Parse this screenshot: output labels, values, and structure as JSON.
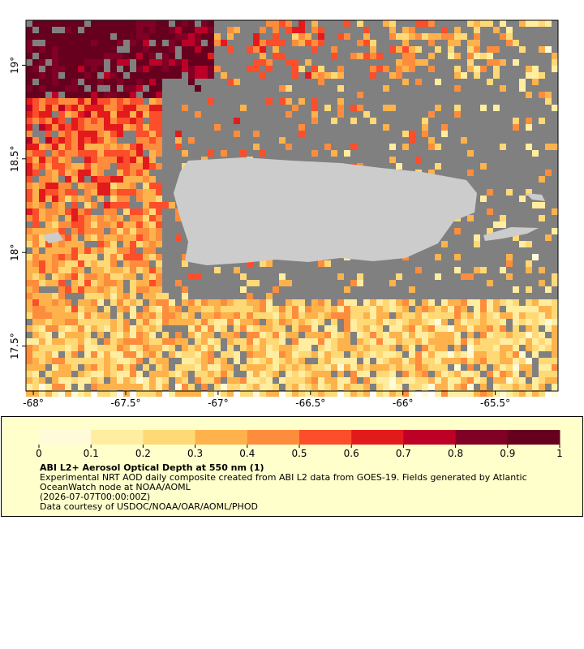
{
  "map": {
    "xlim": [
      -68.04,
      -65.16
    ],
    "ylim": [
      17.26,
      19.24
    ],
    "xticks": [
      {
        "value": -68,
        "label": "-68°"
      },
      {
        "value": -67.5,
        "label": "-67.5°"
      },
      {
        "value": -67,
        "label": "-67°"
      },
      {
        "value": -66.5,
        "label": "-66.5°"
      },
      {
        "value": -66,
        "label": "-66°"
      },
      {
        "value": -65.5,
        "label": "-65.5°"
      }
    ],
    "yticks": [
      {
        "value": 17.5,
        "label": "17.5°"
      },
      {
        "value": 18,
        "label": "18°"
      },
      {
        "value": 18.5,
        "label": "18.5°"
      },
      {
        "value": 19,
        "label": "19°"
      }
    ],
    "colormap": [
      "#fffbd9",
      "#ffeda0",
      "#fed976",
      "#feb24c",
      "#fd8d3c",
      "#fc4e2a",
      "#e31a1c",
      "#bd0026",
      "#800026",
      "#67001f"
    ]
  },
  "colorbar": {
    "range": [
      0,
      1
    ],
    "ticks": [
      0,
      0.1,
      0.2,
      0.3,
      0.4,
      0.5,
      0.6,
      0.7,
      0.8,
      0.9,
      1
    ]
  },
  "legend": {
    "title": "ABI L2+ Aerosol Optical Depth at 550 nm (1)",
    "lines": [
      "Experimental NRT AOD daily composite created from ABI L2 data from GOES-19. Fields generated by Atlantic",
      "OceanWatch node at NOAA/AOML",
      "(2026-07-07T00:00:00Z)",
      "Data courtesy of USDOC/NOAA/OAR/AOML/PHOD"
    ]
  }
}
